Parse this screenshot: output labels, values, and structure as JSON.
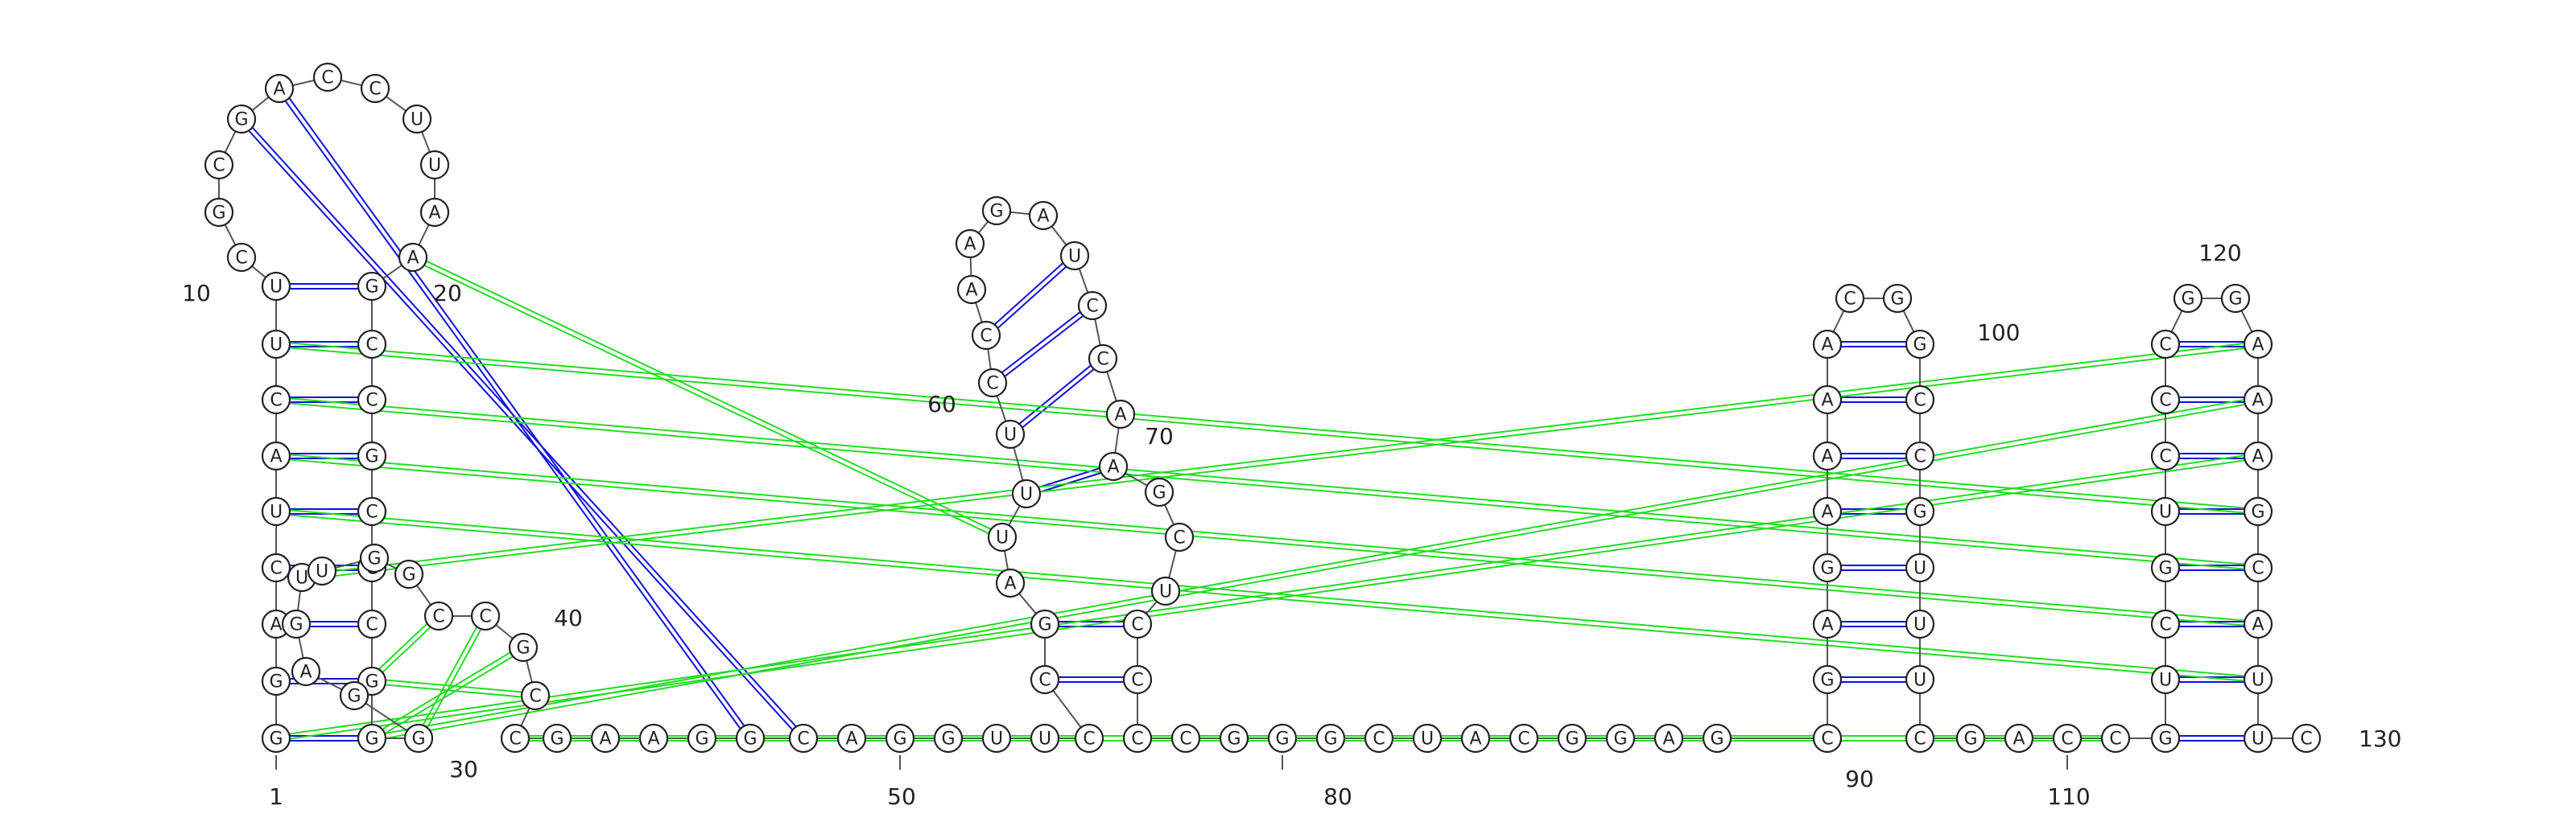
{
  "diagram": {
    "type": "rna-secondary-structure",
    "colors": {
      "canonical_pair": "#1010dd",
      "noncanonical_pair": "#22dd22",
      "backbone": "#555555",
      "nucleotide_outline": "#222222"
    },
    "sequence": "GGACUACUUCGCGACCUUAAGCCGCCCGGGGAGUUGGCCGCCGAAGGCAGGUUCCGAUUUCCAAGAUCCAAGCUCCCCGGGCUACGGAGCGAGAAAACGGCCGUUUCGACCGUCGUCCCGGAAAGCAUUC",
    "position_labels": [
      "1",
      "10",
      "20",
      "30",
      "40",
      "50",
      "60",
      "70",
      "80",
      "90",
      "100",
      "110",
      "120",
      "130"
    ]
  }
}
